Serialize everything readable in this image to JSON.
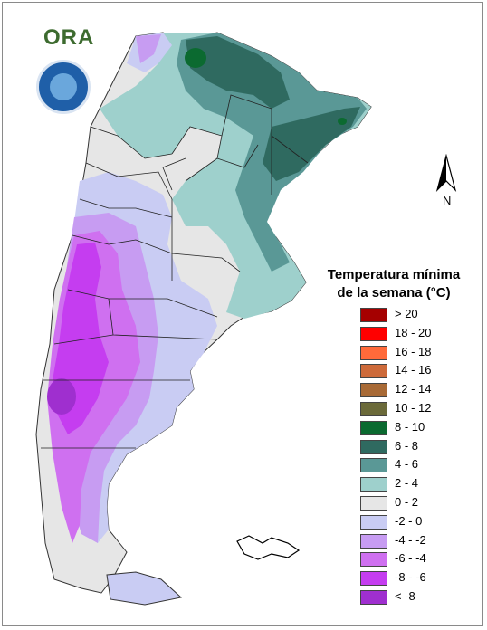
{
  "header": {
    "logo_text": "ORA",
    "badge_name": "Servicio Meteorológico Nacional Argentina"
  },
  "compass": {
    "label": "N"
  },
  "legend": {
    "title_line1": "Temperatura mínima",
    "title_line2": "de la semana (°C)",
    "items": [
      {
        "label": "> 20",
        "color": "#a50000"
      },
      {
        "label": "18 - 20",
        "color": "#ff0000"
      },
      {
        "label": "16 - 18",
        "color": "#ff6a3a"
      },
      {
        "label": "14 - 16",
        "color": "#cd6a3a"
      },
      {
        "label": "12 - 14",
        "color": "#a86a36"
      },
      {
        "label": "10 - 12",
        "color": "#6b6a3a"
      },
      {
        "label": "8 - 10",
        "color": "#0b6a30"
      },
      {
        "label": "6 - 8",
        "color": "#2f6a60"
      },
      {
        "label": "4 - 6",
        "color": "#5a9896"
      },
      {
        "label": "2 - 4",
        "color": "#9ed0cc"
      },
      {
        "label": "0 - 2",
        "color": "#e6e6e6"
      },
      {
        "label": "-2 - 0",
        "color": "#c9ccf3"
      },
      {
        "label": "-4 - -2",
        "color": "#c79cf2"
      },
      {
        "label": "-6 - -4",
        "color": "#cf70f0"
      },
      {
        "label": "-8 - -6",
        "color": "#c53df0"
      },
      {
        "label": "< -8",
        "color": "#9f2fcf"
      }
    ]
  }
}
